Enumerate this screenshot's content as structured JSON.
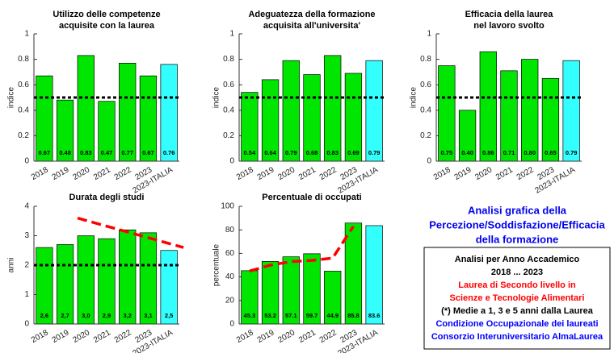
{
  "chart_data": [
    {
      "type": "bar",
      "title": [
        "Utilizzo delle competenze",
        "acquisite con la laurea"
      ],
      "ylabel": "indice",
      "categories": [
        "2018",
        "2019",
        "2020",
        "2021",
        "2022",
        "2023",
        "2023-ITALIA"
      ],
      "values": [
        0.67,
        0.48,
        0.83,
        0.47,
        0.77,
        0.67,
        0.76
      ],
      "value_labels": [
        "0.67",
        "0.48",
        "0.83",
        "0.47",
        "0.77",
        "0.67",
        "0.76"
      ],
      "colors": [
        "#00e600",
        "#00e600",
        "#00e600",
        "#00e600",
        "#00e600",
        "#00e600",
        "#33ffff"
      ],
      "ylim": [
        0,
        1
      ],
      "yticks": [
        0,
        0.2,
        0.4,
        0.6,
        0.8,
        1
      ],
      "ref_line": {
        "value": 0.5,
        "color": "#000000"
      }
    },
    {
      "type": "bar",
      "title": [
        "Adeguatezza della formazione",
        "acquisita all'universita'"
      ],
      "ylabel": "indice",
      "categories": [
        "2018",
        "2019",
        "2020",
        "2021",
        "2022",
        "2023",
        "2023-ITALIA"
      ],
      "values": [
        0.54,
        0.64,
        0.79,
        0.68,
        0.83,
        0.69,
        0.79
      ],
      "value_labels": [
        "0.54",
        "0.64",
        "0.79",
        "0.68",
        "0.83",
        "0.69",
        "0.79"
      ],
      "colors": [
        "#00e600",
        "#00e600",
        "#00e600",
        "#00e600",
        "#00e600",
        "#00e600",
        "#33ffff"
      ],
      "ylim": [
        0,
        1
      ],
      "yticks": [
        0,
        0.2,
        0.4,
        0.6,
        0.8,
        1
      ],
      "ref_line": {
        "value": 0.5,
        "color": "#000000"
      }
    },
    {
      "type": "bar",
      "title": [
        "Efficacia della laurea",
        "nel lavoro svolto"
      ],
      "ylabel": "indice",
      "categories": [
        "2018",
        "2019",
        "2020",
        "2021",
        "2022",
        "2023",
        "2023-ITALIA"
      ],
      "values": [
        0.75,
        0.4,
        0.86,
        0.71,
        0.8,
        0.65,
        0.79
      ],
      "value_labels": [
        "0.75",
        "0.40",
        "0.86",
        "0.71",
        "0.80",
        "0.65",
        "0.79"
      ],
      "colors": [
        "#00e600",
        "#00e600",
        "#00e600",
        "#00e600",
        "#00e600",
        "#00e600",
        "#33ffff"
      ],
      "ylim": [
        0,
        1
      ],
      "yticks": [
        0,
        0.2,
        0.4,
        0.6,
        0.8,
        1
      ],
      "ref_line": {
        "value": 0.5,
        "color": "#000000"
      }
    },
    {
      "type": "bar",
      "title": [
        "Durata degli studi"
      ],
      "ylabel": "anni",
      "categories": [
        "2018",
        "2019",
        "2020",
        "2021",
        "2022",
        "2023",
        "2023-ITALIA"
      ],
      "values": [
        2.6,
        2.7,
        3.0,
        2.9,
        3.2,
        3.1,
        2.5
      ],
      "value_labels": [
        "2,6",
        "2,7",
        "3,0",
        "2,9",
        "3,2",
        "3,1",
        "2,5"
      ],
      "colors": [
        "#00e600",
        "#00e600",
        "#00e600",
        "#00e600",
        "#00e600",
        "#00e600",
        "#33ffff"
      ],
      "ylim": [
        0,
        4
      ],
      "yticks": [
        0,
        1,
        2,
        3,
        4
      ],
      "ref_line": {
        "value": 2,
        "color": "#000000"
      },
      "trend": {
        "x": [
          1.6,
          6.7
        ],
        "y": [
          3.6,
          2.6
        ],
        "color": "#ff0000"
      }
    },
    {
      "type": "bar",
      "title": [
        "Percentuale di occupati"
      ],
      "ylabel": "percentuale",
      "categories": [
        "2018",
        "2019",
        "2020",
        "2021",
        "2022",
        "2023",
        "2023-ITALIA"
      ],
      "values": [
        45.3,
        53.2,
        57.1,
        59.7,
        44.9,
        85.8,
        83.6
      ],
      "value_labels": [
        "45.3",
        "53.2",
        "57.1",
        "59.7",
        "44.9",
        "85.8",
        "83.6"
      ],
      "colors": [
        "#00e600",
        "#00e600",
        "#00e600",
        "#00e600",
        "#00e600",
        "#00e600",
        "#33ffff"
      ],
      "ylim": [
        0,
        100
      ],
      "yticks": [
        0,
        20,
        40,
        60,
        80,
        100
      ],
      "trend": {
        "x": [
          0,
          1,
          2,
          3,
          4,
          5
        ],
        "y": [
          45,
          50,
          53,
          54,
          56,
          83
        ],
        "color": "#ff0000"
      }
    }
  ],
  "info_panel": {
    "heading": [
      "Analisi grafica della",
      "Percezione/Soddisfazione/Efficacia",
      "della formazione"
    ],
    "box_lines": [
      {
        "text": "Analisi per Anno Accademico",
        "color": "#000000"
      },
      {
        "text": "2018 ... 2023",
        "color": "#000000"
      },
      {
        "text": "Laurea di Secondo livello in",
        "color": "#ff0000"
      },
      {
        "text": "Scienze e Tecnologie Alimentari",
        "color": "#ff0000"
      },
      {
        "text": "(*) Medie a 1, 3 e 5 anni dalla Laurea",
        "color": "#000000"
      },
      {
        "text": "Condizione Occupazionale dei laureati",
        "color": "#0000ff"
      },
      {
        "text": "Consorzio Interuniversitario AlmaLaurea",
        "color": "#0000ff"
      }
    ]
  }
}
